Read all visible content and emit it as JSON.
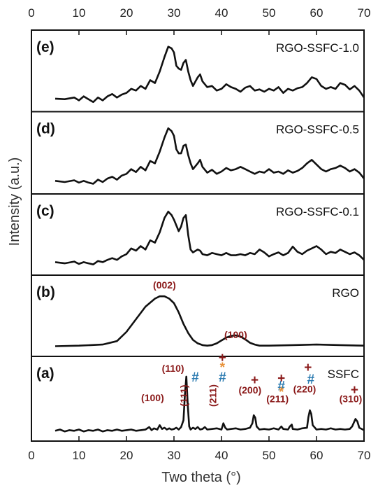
{
  "chart_data": {
    "type": "line",
    "xlabel": "Two theta (°)",
    "ylabel": "Intensity (a.u.)",
    "xlim": [
      0,
      70
    ],
    "x_ticks": [
      "0",
      "10",
      "20",
      "30",
      "40",
      "50",
      "60",
      "70"
    ],
    "grid": false,
    "colors": {
      "line": "#111111",
      "label_red": "#8b1a1a",
      "hash_blue": "#2a7ab0",
      "star_orange": "#e8923a"
    },
    "panels": [
      {
        "letter": "(e)",
        "name": "RGO-SSFC-1.0",
        "series": {
          "x": [
            5,
            7,
            9,
            10,
            11,
            12,
            13,
            14,
            15,
            16,
            17,
            18,
            19,
            20,
            21,
            22,
            23,
            24,
            25,
            26,
            27,
            28,
            28.8,
            29.5,
            30,
            30.5,
            31,
            31.5,
            32,
            32.5,
            33,
            33.5,
            34,
            35,
            35.5,
            36,
            37,
            38,
            39,
            40,
            41,
            42,
            43,
            44,
            45,
            46,
            47,
            48,
            49,
            50,
            51,
            52,
            53,
            54,
            55,
            56,
            57,
            58,
            59,
            60,
            61,
            62,
            63,
            64,
            65,
            66,
            67,
            68,
            69,
            70
          ],
          "y": [
            0.08,
            0.07,
            0.1,
            0.05,
            0.12,
            0.07,
            0.02,
            0.1,
            0.05,
            0.12,
            0.16,
            0.1,
            0.15,
            0.18,
            0.25,
            0.22,
            0.3,
            0.25,
            0.4,
            0.35,
            0.55,
            0.8,
            0.98,
            0.95,
            0.88,
            0.65,
            0.6,
            0.58,
            0.7,
            0.75,
            0.55,
            0.4,
            0.3,
            0.45,
            0.5,
            0.38,
            0.28,
            0.3,
            0.22,
            0.25,
            0.33,
            0.28,
            0.25,
            0.2,
            0.27,
            0.3,
            0.22,
            0.24,
            0.2,
            0.25,
            0.22,
            0.28,
            0.18,
            0.25,
            0.22,
            0.26,
            0.28,
            0.35,
            0.45,
            0.42,
            0.3,
            0.25,
            0.28,
            0.25,
            0.35,
            0.32,
            0.24,
            0.3,
            0.22,
            0.1
          ]
        }
      },
      {
        "letter": "(d)",
        "name": "RGO-SSFC-0.5",
        "series": {
          "x": [
            5,
            7,
            9,
            10,
            11,
            12,
            13,
            14,
            15,
            16,
            17,
            18,
            19,
            20,
            21,
            22,
            23,
            24,
            25,
            26,
            27,
            28,
            28.8,
            29.5,
            30,
            30.5,
            31,
            31.5,
            32,
            32.5,
            33,
            33.5,
            34,
            35,
            35.5,
            36,
            37,
            38,
            39,
            40,
            41,
            42,
            43,
            44,
            45,
            46,
            47,
            48,
            49,
            50,
            51,
            52,
            53,
            54,
            55,
            56,
            57,
            58,
            59,
            60,
            61,
            62,
            63,
            64,
            65,
            66,
            67,
            68,
            69,
            70
          ],
          "y": [
            0.08,
            0.06,
            0.09,
            0.05,
            0.08,
            0.05,
            0.03,
            0.1,
            0.06,
            0.12,
            0.15,
            0.1,
            0.17,
            0.2,
            0.28,
            0.23,
            0.32,
            0.26,
            0.42,
            0.38,
            0.58,
            0.82,
            0.98,
            0.93,
            0.85,
            0.62,
            0.55,
            0.55,
            0.68,
            0.7,
            0.52,
            0.38,
            0.28,
            0.38,
            0.44,
            0.32,
            0.22,
            0.27,
            0.2,
            0.24,
            0.3,
            0.26,
            0.28,
            0.32,
            0.28,
            0.24,
            0.2,
            0.24,
            0.22,
            0.28,
            0.22,
            0.24,
            0.2,
            0.26,
            0.22,
            0.25,
            0.3,
            0.38,
            0.44,
            0.36,
            0.28,
            0.24,
            0.28,
            0.3,
            0.34,
            0.3,
            0.24,
            0.28,
            0.22,
            0.12
          ]
        }
      },
      {
        "letter": "(c)",
        "name": "RGO-SSFC-0.1",
        "series": {
          "x": [
            5,
            7,
            9,
            10,
            11,
            12,
            13,
            14,
            15,
            16,
            17,
            18,
            19,
            20,
            21,
            22,
            23,
            24,
            25,
            26,
            27,
            28,
            28.8,
            29.5,
            30,
            30.5,
            31,
            31.5,
            32,
            32.5,
            33,
            33.5,
            34,
            35,
            35.5,
            36,
            37,
            38,
            39,
            40,
            41,
            42,
            43,
            44,
            45,
            46,
            47,
            48,
            49,
            50,
            51,
            52,
            53,
            54,
            55,
            56,
            57,
            58,
            59,
            60,
            61,
            62,
            63,
            64,
            65,
            66,
            67,
            68,
            69,
            70
          ],
          "y": [
            0.08,
            0.06,
            0.09,
            0.05,
            0.08,
            0.06,
            0.04,
            0.1,
            0.08,
            0.12,
            0.15,
            0.12,
            0.18,
            0.22,
            0.32,
            0.28,
            0.36,
            0.3,
            0.46,
            0.42,
            0.6,
            0.85,
            0.96,
            0.9,
            0.82,
            0.72,
            0.62,
            0.7,
            0.85,
            0.9,
            0.55,
            0.3,
            0.25,
            0.3,
            0.28,
            0.22,
            0.2,
            0.24,
            0.22,
            0.2,
            0.24,
            0.2,
            0.2,
            0.22,
            0.2,
            0.24,
            0.22,
            0.3,
            0.25,
            0.18,
            0.22,
            0.25,
            0.2,
            0.24,
            0.35,
            0.26,
            0.22,
            0.28,
            0.32,
            0.36,
            0.3,
            0.22,
            0.26,
            0.24,
            0.3,
            0.26,
            0.22,
            0.25,
            0.2,
            0.12
          ]
        }
      },
      {
        "letter": "(b)",
        "name": "RGO",
        "series": {
          "x": [
            5,
            10,
            15,
            18,
            20,
            22,
            24,
            26,
            27,
            28,
            29,
            30,
            31,
            32,
            33,
            34,
            35,
            36,
            37,
            38,
            39,
            40,
            41,
            42,
            43,
            44,
            45,
            46,
            47,
            48,
            50,
            55,
            60,
            65,
            70
          ],
          "y": [
            0.03,
            0.04,
            0.06,
            0.12,
            0.28,
            0.5,
            0.72,
            0.86,
            0.9,
            0.9,
            0.86,
            0.78,
            0.62,
            0.42,
            0.26,
            0.14,
            0.08,
            0.05,
            0.04,
            0.05,
            0.08,
            0.13,
            0.18,
            0.21,
            0.22,
            0.2,
            0.15,
            0.09,
            0.06,
            0.04,
            0.04,
            0.05,
            0.06,
            0.05,
            0.04
          ]
        },
        "annotations": [
          {
            "text": "(002)",
            "x": 28,
            "color": "#8b1a1a"
          },
          {
            "text": "(100)",
            "x": 43,
            "color": "#8b1a1a"
          }
        ]
      },
      {
        "letter": "(a)",
        "name": "SSFC",
        "series": {
          "x": [
            5,
            6,
            7,
            8,
            9,
            10,
            11,
            12,
            13,
            14,
            15,
            16,
            17,
            18,
            19,
            20,
            21,
            22,
            23,
            24,
            24.8,
            25.3,
            25.8,
            26.5,
            27,
            27.5,
            28,
            28.5,
            29,
            29.5,
            30,
            30.5,
            31,
            31.5,
            32,
            32.3,
            32.6,
            32.9,
            33.2,
            33.5,
            34,
            34.5,
            35,
            35.5,
            36,
            36.5,
            37,
            38,
            39,
            40,
            40.4,
            40.8,
            41.2,
            42,
            43,
            44,
            45,
            46,
            46.5,
            46.8,
            47.1,
            47.4,
            48,
            49,
            50,
            51,
            52,
            52.6,
            53,
            54,
            54.4,
            54.8,
            55,
            56,
            57,
            58,
            58.3,
            58.6,
            58.9,
            59.2,
            60,
            61,
            62,
            63,
            64,
            65,
            66,
            67,
            67.5,
            68.2,
            68.6,
            69,
            70
          ],
          "y": [
            0.03,
            0.05,
            0.02,
            0.04,
            0.03,
            0.05,
            0.02,
            0.04,
            0.03,
            0.05,
            0.02,
            0.04,
            0.03,
            0.05,
            0.03,
            0.04,
            0.05,
            0.03,
            0.04,
            0.05,
            0.09,
            0.04,
            0.07,
            0.05,
            0.12,
            0.06,
            0.08,
            0.05,
            0.07,
            0.05,
            0.06,
            0.08,
            0.05,
            0.09,
            0.2,
            0.6,
            0.9,
            0.45,
            0.1,
            0.05,
            0.08,
            0.06,
            0.09,
            0.05,
            0.06,
            0.09,
            0.05,
            0.06,
            0.07,
            0.05,
            0.15,
            0.08,
            0.05,
            0.06,
            0.07,
            0.05,
            0.06,
            0.08,
            0.15,
            0.28,
            0.24,
            0.1,
            0.05,
            0.06,
            0.05,
            0.07,
            0.05,
            0.1,
            0.06,
            0.05,
            0.1,
            0.13,
            0.06,
            0.05,
            0.07,
            0.08,
            0.25,
            0.36,
            0.3,
            0.12,
            0.05,
            0.06,
            0.05,
            0.07,
            0.05,
            0.06,
            0.05,
            0.06,
            0.1,
            0.22,
            0.18,
            0.08,
            0.04
          ]
        },
        "annotations": [
          {
            "text": "(100)",
            "x": 25.5,
            "row": 3,
            "color": "#8b1a1a"
          },
          {
            "text": "(110)",
            "x": 29.8,
            "row": 0,
            "color": "#8b1a1a"
          },
          {
            "text": "(111)",
            "x": 33.7,
            "row": 2,
            "color": "#8b1a1a",
            "rotate": true
          },
          {
            "text": "#",
            "x": 34.5,
            "row": 1,
            "color": "#2a7ab0",
            "kind": "marker"
          },
          {
            "text": "+",
            "x": 40.2,
            "row": -1,
            "color": "#8b1a1a",
            "kind": "marker"
          },
          {
            "text": "*",
            "x": 40.2,
            "row": 0,
            "color": "#e8923a",
            "kind": "marker"
          },
          {
            "text": "#",
            "x": 40.2,
            "row": 1,
            "color": "#2a7ab0",
            "kind": "marker"
          },
          {
            "text": "(211)",
            "x": 39.8,
            "row": 2,
            "color": "#8b1a1a",
            "rotate": true
          },
          {
            "text": "+",
            "x": 47.0,
            "row": 1.3,
            "color": "#8b1a1a",
            "kind": "marker"
          },
          {
            "text": "(200)",
            "x": 46.0,
            "row": 2.2,
            "color": "#8b1a1a"
          },
          {
            "text": "+",
            "x": 52.6,
            "row": 1.1,
            "color": "#8b1a1a",
            "kind": "marker"
          },
          {
            "text": "#",
            "x": 52.6,
            "row": 1.9,
            "color": "#2a7ab0",
            "kind": "marker"
          },
          {
            "text": "*",
            "x": 52.6,
            "row": 2.5,
            "color": "#e8923a",
            "kind": "marker"
          },
          {
            "text": "(211)",
            "x": 51.8,
            "row": 3.1,
            "color": "#8b1a1a"
          },
          {
            "text": "+",
            "x": 58.2,
            "row": 0,
            "color": "#8b1a1a",
            "kind": "marker"
          },
          {
            "text": "#",
            "x": 58.8,
            "row": 1.2,
            "color": "#2a7ab0",
            "kind": "marker"
          },
          {
            "text": "(220)",
            "x": 57.5,
            "row": 2.1,
            "color": "#8b1a1a"
          },
          {
            "text": "+",
            "x": 68.0,
            "row": 2.3,
            "color": "#8b1a1a",
            "kind": "marker"
          },
          {
            "text": "(310)",
            "x": 67.2,
            "row": 3.1,
            "color": "#8b1a1a"
          }
        ]
      }
    ]
  }
}
